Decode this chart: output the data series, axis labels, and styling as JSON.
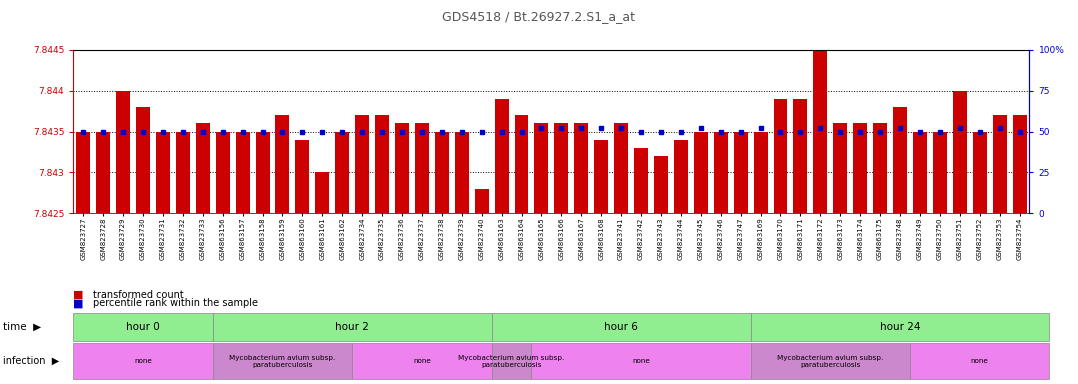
{
  "title": "GDS4518 / Bt.26927.2.S1_a_at",
  "samples": [
    "GSM823727",
    "GSM823728",
    "GSM823729",
    "GSM823730",
    "GSM823731",
    "GSM823732",
    "GSM823733",
    "GSM863156",
    "GSM863157",
    "GSM863158",
    "GSM863159",
    "GSM863160",
    "GSM863161",
    "GSM863162",
    "GSM823734",
    "GSM823735",
    "GSM823736",
    "GSM823737",
    "GSM823738",
    "GSM823739",
    "GSM823740",
    "GSM863163",
    "GSM863164",
    "GSM863165",
    "GSM863166",
    "GSM863167",
    "GSM863168",
    "GSM823741",
    "GSM823742",
    "GSM823743",
    "GSM823744",
    "GSM823745",
    "GSM823746",
    "GSM823747",
    "GSM863169",
    "GSM863170",
    "GSM863171",
    "GSM863172",
    "GSM863173",
    "GSM863174",
    "GSM863175",
    "GSM823748",
    "GSM823749",
    "GSM823750",
    "GSM823751",
    "GSM823752",
    "GSM823753",
    "GSM823754"
  ],
  "red_values": [
    7.8435,
    7.8435,
    7.844,
    7.8438,
    7.8435,
    7.8435,
    7.8436,
    7.8435,
    7.8435,
    7.8435,
    7.8437,
    7.8434,
    7.843,
    7.8435,
    7.8437,
    7.8437,
    7.8436,
    7.8436,
    7.8435,
    7.8435,
    7.8428,
    7.8439,
    7.8437,
    7.8436,
    7.8436,
    7.8436,
    7.8434,
    7.8436,
    7.8433,
    7.8432,
    7.8434,
    7.8435,
    7.8435,
    7.8435,
    7.8435,
    7.8439,
    7.8439,
    7.8445,
    7.8436,
    7.8436,
    7.8436,
    7.8438,
    7.8435,
    7.8435,
    7.844,
    7.8435,
    7.8437,
    7.8437
  ],
  "blue_values": [
    50,
    50,
    50,
    50,
    50,
    50,
    50,
    50,
    50,
    50,
    50,
    50,
    50,
    50,
    50,
    50,
    50,
    50,
    50,
    50,
    50,
    50,
    50,
    52,
    52,
    52,
    52,
    52,
    50,
    50,
    50,
    52,
    50,
    50,
    52,
    50,
    50,
    52,
    50,
    50,
    50,
    52,
    50,
    50,
    52,
    50,
    52,
    50
  ],
  "ymin": 7.8425,
  "ymax": 7.8445,
  "yticks": [
    7.8425,
    7.843,
    7.8435,
    7.844,
    7.8445
  ],
  "ytick_labels": [
    "7.8425",
    "7.843",
    "7.8435",
    "7.844",
    "7.8445"
  ],
  "right_yticks": [
    0,
    25,
    50,
    75,
    100
  ],
  "right_ytick_labels": [
    "0",
    "25",
    "50",
    "75",
    "100%"
  ],
  "dotted_lines": [
    7.843,
    7.8435,
    7.844
  ],
  "time_groups": [
    {
      "label": "hour 0",
      "start": 0,
      "end": 7
    },
    {
      "label": "hour 2",
      "start": 7,
      "end": 21
    },
    {
      "label": "hour 6",
      "start": 21,
      "end": 34
    },
    {
      "label": "hour 24",
      "start": 34,
      "end": 49
    }
  ],
  "infection_groups": [
    {
      "label": "none",
      "start": 0,
      "end": 7,
      "color": "#EE82EE"
    },
    {
      "label": "Mycobacterium avium subsp.\nparatuberculosis",
      "start": 7,
      "end": 14,
      "color": "#CC88CC"
    },
    {
      "label": "none",
      "start": 14,
      "end": 21,
      "color": "#EE82EE"
    },
    {
      "label": "Mycobacterium avium subsp.\nparatuberculosis",
      "start": 21,
      "end": 23,
      "color": "#CC88CC"
    },
    {
      "label": "none",
      "start": 23,
      "end": 34,
      "color": "#EE82EE"
    },
    {
      "label": "Mycobacterium avium subsp.\nparatuberculosis",
      "start": 34,
      "end": 42,
      "color": "#CC88CC"
    },
    {
      "label": "none",
      "start": 42,
      "end": 49,
      "color": "#EE82EE"
    }
  ],
  "bar_color": "#CC0000",
  "blue_color": "#0000CC",
  "time_color": "#90EE90",
  "bg_color": "#FFFFFF",
  "title_color": "#555555",
  "left_axis_color": "#CC0000",
  "right_axis_color": "#0000CC"
}
